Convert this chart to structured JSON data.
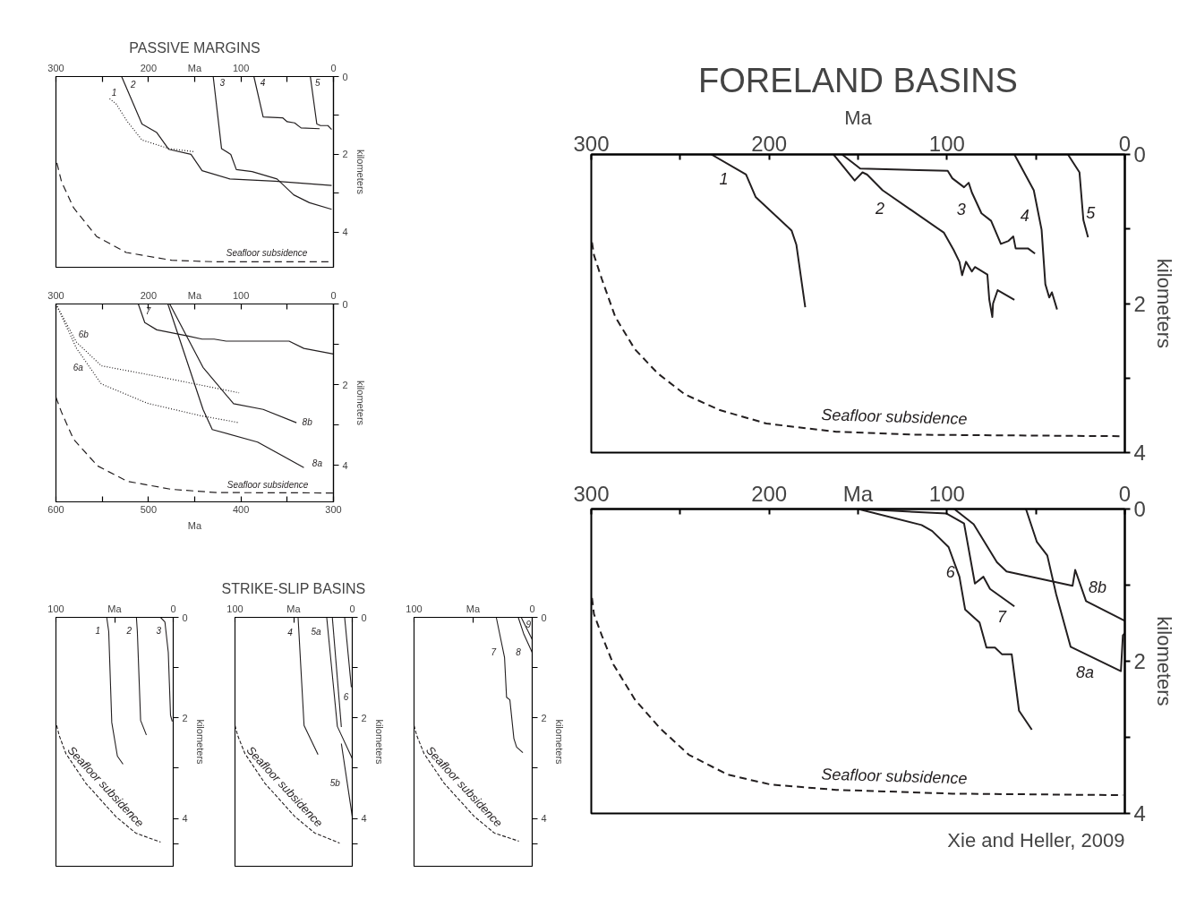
{
  "chart_data": [
    {
      "type": "line",
      "title": "PASSIVE MARGINS",
      "ylabel": "kilometers",
      "xlim": [
        300,
        0
      ],
      "ylim": [
        4.9,
        0
      ],
      "xticks": [
        300,
        {
          "value": 250,
          "label": null
        },
        200,
        {
          "value": 150,
          "label": "Ma"
        },
        100,
        {
          "value": 50,
          "label": null
        },
        0
      ],
      "yticks": [
        0,
        {
          "value": 1,
          "label": null
        },
        2,
        {
          "value": 3,
          "label": null
        },
        4
      ],
      "series": [
        {
          "name": "1",
          "color": "#231f20",
          "line_style": "dotted",
          "x": [
            242,
            235,
            223,
            207,
            178,
            151
          ],
          "values": [
            0.57,
            0.7,
            1.15,
            1.63,
            1.85,
            1.93
          ]
        },
        {
          "name": "2",
          "color": "#231f20",
          "x": [
            229,
            207,
            191,
            178,
            154,
            142,
            112,
            63,
            2
          ],
          "values": [
            0,
            1.22,
            1.44,
            1.87,
            2.0,
            2.42,
            2.63,
            2.69,
            2.8
          ]
        },
        {
          "name": "3",
          "color": "#231f20",
          "x": [
            130,
            121,
            111,
            105,
            88,
            61,
            43,
            26,
            2
          ],
          "values": [
            0,
            1.85,
            2.0,
            2.39,
            2.44,
            2.63,
            3.04,
            3.24,
            3.41
          ]
        },
        {
          "name": "4",
          "color": "#231f20",
          "x": [
            86,
            76,
            55,
            50,
            42,
            35,
            15
          ],
          "values": [
            0,
            1.04,
            1.06,
            1.16,
            1.19,
            1.32,
            1.34
          ]
        },
        {
          "name": "5",
          "color": "#231f20",
          "x": [
            25,
            18,
            14,
            6,
            2
          ],
          "values": [
            0,
            1.22,
            1.26,
            1.26,
            1.36
          ]
        },
        {
          "color": "#231f20",
          "line_style": "dashed",
          "x": [
            299,
            294,
            281,
            256,
            224,
            175,
            127,
            2
          ],
          "values": [
            2.22,
            2.7,
            3.37,
            4.11,
            4.52,
            4.72,
            4.76,
            4.76
          ]
        }
      ],
      "annotations": [
        "Seafloor subsidence"
      ]
    },
    {
      "type": "line",
      "ylabel": "kilometers",
      "xlim": [
        300,
        0
      ],
      "ylim": [
        4.9,
        0
      ],
      "xticks": [
        300,
        {
          "value": 250,
          "label": null
        },
        200,
        {
          "value": 150,
          "label": "Ma"
        },
        100,
        {
          "value": 50,
          "label": null
        },
        0
      ],
      "yticks": [
        0,
        {
          "value": 1,
          "label": null
        },
        2,
        {
          "value": 3,
          "label": null
        },
        4
      ],
      "x2label": "Ma",
      "x2lim": [
        600,
        300
      ],
      "x2ticks": [
        600,
        {
          "value": 550,
          "label": null
        },
        500,
        {
          "value": 450,
          "label": null
        },
        400,
        {
          "value": 350,
          "label": null
        },
        300
      ],
      "series": [
        {
          "name": "6b",
          "color": "#231f20",
          "line_style": "dotted",
          "axis": "x2",
          "x": [
            600,
            578,
            551,
            491,
            402
          ],
          "values": [
            0,
            0.94,
            1.53,
            1.79,
            2.2
          ]
        },
        {
          "name": "6a",
          "color": "#231f20",
          "line_style": "dotted",
          "axis": "x2",
          "x": [
            600,
            578,
            551,
            501,
            443,
            402
          ],
          "values": [
            0,
            1.09,
            1.98,
            2.46,
            2.77,
            2.94
          ]
        },
        {
          "name": "7",
          "color": "#231f20",
          "x": [
            211,
            204,
            191,
            158,
            142,
            129,
            116,
            48,
            32,
            0
          ],
          "values": [
            0,
            0.46,
            0.64,
            0.79,
            0.87,
            0.87,
            0.92,
            0.92,
            1.1,
            1.24
          ]
        },
        {
          "name": "8a",
          "color": "#231f20",
          "x": [
            179,
            141,
            131,
            82,
            32
          ],
          "values": [
            0,
            2.61,
            3.11,
            3.42,
            4.05
          ]
        },
        {
          "name": "8b",
          "color": "#231f20",
          "x": [
            177,
            141,
            108,
            76,
            40
          ],
          "values": [
            0,
            1.57,
            2.47,
            2.61,
            2.94
          ]
        },
        {
          "color": "#231f20",
          "line_style": "dashed",
          "x": [
            300,
            294,
            281,
            255,
            223,
            175,
            126,
            0
          ],
          "values": [
            2.31,
            2.68,
            3.35,
            4.01,
            4.39,
            4.59,
            4.67,
            4.68
          ]
        }
      ],
      "annotations": [
        "Seafloor subsidence"
      ]
    },
    {
      "type": "line",
      "ylabel": "kilometers",
      "xlim": [
        100,
        0
      ],
      "ylim": [
        4.95,
        0
      ],
      "xticks": [
        100,
        {
          "value": 50,
          "label": "Ma"
        },
        0
      ],
      "yticks": [
        0,
        {
          "value": 1,
          "label": null
        },
        2,
        {
          "value": 3,
          "label": null
        },
        4,
        {
          "value": 4.5,
          "label": null
        }
      ],
      "series": [
        {
          "name": "1",
          "color": "#231f20",
          "x": [
            56.7,
            55,
            52.4,
            47.6,
            42.8
          ],
          "values": [
            0,
            0.28,
            2.09,
            2.76,
            2.92
          ]
        },
        {
          "name": "2",
          "color": "#231f20",
          "x": [
            31.4,
            30.6,
            27.8,
            22.9
          ],
          "values": [
            0,
            0.28,
            2.05,
            2.34
          ]
        },
        {
          "name": "3",
          "color": "#231f20",
          "x": [
            10.8,
            7.1,
            4.2,
            2.3,
            0.8
          ],
          "values": [
            0,
            0.09,
            0.7,
            1.95,
            2.07
          ]
        },
        {
          "color": "#231f20",
          "line_style": "dashed",
          "x": [
            99.4,
            97.2,
            91.5,
            74.5,
            49,
            32,
            10.8
          ],
          "values": [
            2.15,
            2.35,
            2.71,
            3.3,
            3.96,
            4.29,
            4.47
          ]
        }
      ],
      "annotations": [
        "Seafloor subsidence"
      ]
    },
    {
      "type": "line",
      "title": "STRIKE-SLIP BASINS",
      "ylabel": "kilometers",
      "xlim": [
        100,
        0
      ],
      "ylim": [
        4.95,
        0
      ],
      "xticks": [
        100,
        {
          "value": 50,
          "label": "Ma"
        },
        0
      ],
      "yticks": [
        0,
        {
          "value": 1,
          "label": null
        },
        2,
        {
          "value": 3,
          "label": null
        },
        4,
        {
          "value": 4.5,
          "label": null
        }
      ],
      "series": [
        {
          "name": "4",
          "color": "#231f20",
          "x": [
            46.2,
            41.1,
            29.2
          ],
          "values": [
            0,
            2.15,
            2.73
          ]
        },
        {
          "name": "5a",
          "color": "#231f20",
          "x": [
            21.8,
            12.7,
            0
          ],
          "values": [
            0,
            2.17,
            2.81
          ]
        },
        {
          "color": "#231f20",
          "x": [
            17,
            9.3
          ],
          "values": [
            0,
            2.18
          ]
        },
        {
          "name": "5b",
          "color": "#231f20",
          "x": [
            9.3,
            0
          ],
          "values": [
            2.51,
            3.96
          ]
        },
        {
          "name": "6",
          "color": "#231f20",
          "x": [
            6.5,
            0.8
          ],
          "values": [
            0,
            1.39
          ]
        },
        {
          "color": "#231f20",
          "line_style": "dashed",
          "x": [
            100,
            97.7,
            91.5,
            74.5,
            49,
            32,
            10.8
          ],
          "values": [
            2.15,
            2.35,
            2.71,
            3.3,
            3.96,
            4.29,
            4.49
          ]
        }
      ],
      "annotations": [
        "Seafloor subsidence"
      ]
    },
    {
      "type": "line",
      "ylabel": "kilometers",
      "xlim": [
        100,
        0
      ],
      "ylim": [
        4.95,
        0
      ],
      "xticks": [
        100,
        {
          "value": 50,
          "label": "Ma"
        },
        0
      ],
      "yticks": [
        0,
        {
          "value": 1,
          "label": null
        },
        2,
        {
          "value": 3,
          "label": null
        },
        4,
        {
          "value": 4.5,
          "label": null
        }
      ],
      "series": [
        {
          "name": "7",
          "color": "#231f20",
          "x": [
            30.4,
            23.4,
            21.7,
            18.9,
            15.5,
            13.2,
            7.9
          ],
          "values": [
            0,
            0.8,
            1.59,
            1.64,
            2.41,
            2.58,
            2.69
          ]
        },
        {
          "name": "8",
          "color": "#231f20",
          "x": [
            11.8,
            7,
            0
          ],
          "values": [
            0,
            0.34,
            0.7
          ]
        },
        {
          "name": "9",
          "color": "#231f20",
          "x": [
            9.3,
            0
          ],
          "values": [
            0,
            0.44
          ]
        },
        {
          "color": "#231f20",
          "line_style": "dashed",
          "x": [
            100,
            97.7,
            91.5,
            74.5,
            49,
            32,
            11.3
          ],
          "values": [
            2.15,
            2.35,
            2.71,
            3.3,
            3.96,
            4.29,
            4.45
          ]
        }
      ],
      "annotations": [
        "Seafloor subsidence"
      ]
    },
    {
      "type": "line",
      "title": "FORELAND BASINS",
      "xlabel": "Ma",
      "ylabel": "kilometers",
      "xlim": [
        300,
        0
      ],
      "ylim": [
        4,
        0
      ],
      "xticks": [
        300,
        {
          "value": 250,
          "label": null
        },
        200,
        {
          "value": 150,
          "label": null
        },
        100,
        {
          "value": 50,
          "label": null
        },
        0
      ],
      "yticks": [
        0,
        {
          "value": 1,
          "label": null
        },
        2,
        {
          "value": 3,
          "label": null
        },
        4
      ],
      "series": [
        {
          "name": "1",
          "color": "#231f20",
          "x": [
            232.5,
            213,
            207.6,
            187.4,
            184.7,
            179.7
          ],
          "values": [
            0,
            0.27,
            0.57,
            1.02,
            1.21,
            2.05
          ]
        },
        {
          "name": "2",
          "color": "#231f20",
          "x": [
            163.8,
            151.9,
            147.5,
            144.9,
            136.2,
            101.7,
            96.3,
            93,
            91.5,
            89.3,
            86,
            84.3,
            77.3,
            76.2,
            74.5,
            74.1,
            71.5,
            62.1
          ],
          "values": [
            0,
            0.35,
            0.24,
            0.27,
            0.48,
            1.05,
            1.28,
            1.44,
            1.62,
            1.44,
            1.57,
            1.51,
            1.61,
            1.95,
            2.18,
            2.0,
            1.82,
            1.95
          ]
        },
        {
          "name": "3",
          "color": "#231f20",
          "x": [
            159,
            148.8,
            99.6,
            97,
            90.4,
            87.8,
            86,
            80.6,
            75.2,
            69.7,
            65.4,
            62.7,
            61.4,
            54.5,
            50.5
          ],
          "values": [
            0,
            0.19,
            0.22,
            0.32,
            0.44,
            0.38,
            0.51,
            0.79,
            0.89,
            1.2,
            1.16,
            1.1,
            1.26,
            1.26,
            1.33
          ]
        },
        {
          "name": "4",
          "color": "#231f20",
          "x": [
            62.1,
            51.2,
            46.8,
            44.7,
            42.5,
            41,
            38.1
          ],
          "values": [
            0,
            0.48,
            1.01,
            1.74,
            1.92,
            1.85,
            2.08
          ]
        },
        {
          "name": "5",
          "color": "#231f20",
          "x": [
            32,
            25.5,
            23.3,
            20.7
          ],
          "values": [
            0,
            0.24,
            0.88,
            1.11
          ]
        },
        {
          "color": "#231f20",
          "line_style": "dashed",
          "x": [
            299.6,
            298.5,
            294.1,
            286.5,
            275.6,
            262.5,
            247.3,
            227.7,
            201.5,
            162.3,
            118.7,
            1.1
          ],
          "values": [
            1.18,
            1.35,
            1.67,
            2.18,
            2.61,
            2.94,
            3.22,
            3.43,
            3.61,
            3.72,
            3.76,
            3.78
          ]
        }
      ],
      "annotations": [
        "Seafloor subsidence"
      ]
    },
    {
      "type": "line",
      "ylabel": "kilometers",
      "xlim": [
        300,
        0
      ],
      "ylim": [
        4,
        0
      ],
      "xticks": [
        300,
        {
          "value": 250,
          "label": null
        },
        200,
        {
          "value": 150,
          "label": "Ma"
        },
        100,
        {
          "value": 50,
          "label": null
        },
        0
      ],
      "yticks": [
        0,
        {
          "value": 1,
          "label": null
        },
        2,
        {
          "value": 3,
          "label": null
        },
        4
      ],
      "series": [
        {
          "name": "6",
          "color": "#231f20",
          "x": [
            149.9,
            114.3,
            108.3,
            99.1,
            93,
            89.8,
            81.7,
            77.8,
            73,
            69,
            63.6,
            59.5,
            52.3
          ],
          "values": [
            0,
            0.21,
            0.29,
            0.5,
            0.89,
            1.32,
            1.49,
            1.82,
            1.82,
            1.91,
            1.91,
            2.65,
            2.9
          ]
        },
        {
          "name": "7",
          "color": "#231f20",
          "x": [
            149.2,
            100.2,
            90.4,
            84.3,
            79.5,
            75.8,
            62.1
          ],
          "values": [
            0,
            0.06,
            0.19,
            0.98,
            0.89,
            1.05,
            1.28
          ]
        },
        {
          "name": "8b",
          "color": "#231f20",
          "x": [
            95.9,
            85,
            71.9,
            66.5,
            29.4,
            27.9,
            21.8,
            0
          ],
          "values": [
            0,
            0.2,
            0.7,
            0.82,
            1.01,
            0.8,
            1.21,
            1.47
          ]
        },
        {
          "name": "8a",
          "color": "#231f20",
          "x": [
            55.6,
            49.5,
            43.6,
            38.6,
            30.5,
            2.2,
            1.1,
            0
          ],
          "values": [
            0,
            0.43,
            0.61,
            1.12,
            1.81,
            2.13,
            1.66,
            1.63
          ]
        },
        {
          "color": "#231f20",
          "line_style": "dashed",
          "x": [
            299.6,
            298.5,
            294.1,
            287.6,
            275.6,
            261.4,
            245.1,
            223.3,
            199.3,
            162.3,
            96.9,
            1.1
          ],
          "values": [
            1.17,
            1.38,
            1.66,
            2.04,
            2.5,
            2.88,
            3.23,
            3.49,
            3.62,
            3.69,
            3.74,
            3.76
          ]
        }
      ],
      "annotations": [
        "Seafloor subsidence",
        "Xie and Heller, 2009"
      ]
    }
  ]
}
